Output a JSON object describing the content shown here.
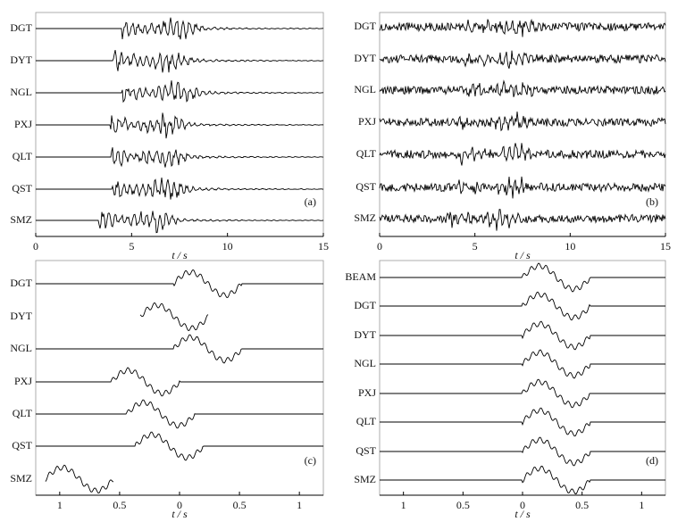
{
  "chart_data": [
    {
      "type": "line",
      "panel_label": "(a)",
      "xlabel": "t / s",
      "categories": [
        "DGT",
        "DYT",
        "NGL",
        "PXJ",
        "QLT",
        "QST",
        "SMZ"
      ],
      "values": [
        4.5,
        4.05,
        4.5,
        3.9,
        3.95,
        4.0,
        3.3
      ],
      "xlim": [
        0,
        15
      ],
      "xticks": [
        0,
        5,
        10,
        15
      ],
      "color": "#000000"
    },
    {
      "type": "line",
      "panel_label": "(b)",
      "xlabel": "t / s",
      "categories": [
        "DGT",
        "DYT",
        "NGL",
        "PXJ",
        "QLT",
        "QST",
        "SMZ"
      ],
      "values": [
        4.5,
        4.05,
        4.5,
        4.0,
        4.2,
        4.0,
        3.4
      ],
      "xlim": [
        0,
        15
      ],
      "xticks": [
        0,
        5,
        10,
        15
      ],
      "color": "#000000"
    },
    {
      "type": "line",
      "panel_label": "(c)",
      "xlabel": "t / s",
      "categories": [
        "DGT",
        "DYT",
        "NGL",
        "PXJ",
        "QLT",
        "QST",
        "SMZ"
      ],
      "values": [
        0.05,
        0.33,
        0.05,
        0.57,
        0.44,
        0.37,
        1.12
      ],
      "baseline": [
        true,
        false,
        true,
        true,
        true,
        true,
        false
      ],
      "xlim": [
        1.2,
        -1.2
      ],
      "xticks": [
        1,
        0.5,
        0,
        {
          "value": -0.5,
          "label": "0.5"
        },
        {
          "value": -1,
          "label": "1"
        }
      ],
      "color": "#000000"
    },
    {
      "type": "line",
      "panel_label": "(d)",
      "xlabel": "t / s",
      "categories": [
        "BEAM",
        "DGT",
        "DYT",
        "NGL",
        "PXJ",
        "QLT",
        "QST",
        "SMZ"
      ],
      "values": [
        0,
        0,
        0,
        0,
        0,
        0,
        0,
        0
      ],
      "baseline": [
        true,
        true,
        true,
        true,
        true,
        true,
        true,
        true
      ],
      "xlim": [
        1.2,
        -1.2
      ],
      "xticks": [
        1,
        0.5,
        0,
        {
          "value": -0.5,
          "label": "0.5"
        },
        {
          "value": -1,
          "label": "1"
        }
      ],
      "color": "#000000"
    }
  ]
}
